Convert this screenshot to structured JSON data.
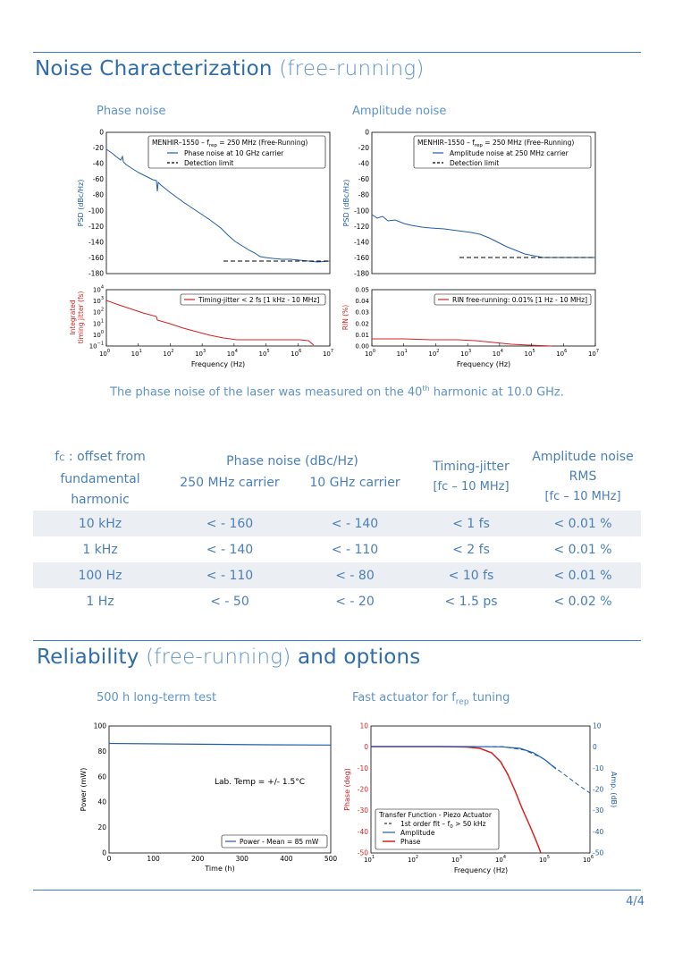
{
  "section1": {
    "title_main": "Noise Characterization",
    "title_light": "(free-running)"
  },
  "fig_phase": {
    "subtitle": "Phase noise",
    "top_legend": {
      "title": "MENHIR–1550 – f",
      "title_sub": "rep",
      "title_rest": " = 250 MHz (Free-Running)",
      "line": "Phase noise at 10 GHz carrier",
      "limit": "Detection limit"
    },
    "top_ylabel": "PSD (dBc/Hz)",
    "top_yticks": [
      "0",
      "-20",
      "-40",
      "-60",
      "-80",
      "-100",
      "-120",
      "-140",
      "-160",
      "-180"
    ],
    "bottom_ylabel_1": "Integrated",
    "bottom_ylabel_2": "timing jitter (fs)",
    "bottom_legend": "Timing-jitter < 2 fs [1 kHz - 10 MHz]",
    "bottom_yticks": [
      "10",
      "10",
      "10",
      "10",
      "10",
      "10"
    ],
    "bottom_yexp": [
      "4",
      "3",
      "2",
      "1",
      "0",
      "−1"
    ],
    "xlabel": "Frequency (Hz)",
    "xticks": [
      "10",
      "10",
      "10",
      "10",
      "10",
      "10",
      "10",
      "10"
    ],
    "xexp": [
      "0",
      "1",
      "2",
      "3",
      "4",
      "5",
      "6",
      "7"
    ]
  },
  "fig_amp": {
    "subtitle": "Amplitude noise",
    "top_legend": {
      "title": "MENHIR–1550 – f",
      "title_sub": "rep",
      "title_rest": " = 250 MHz (Free–Running)",
      "line": "Amplitude noise at 250 MHz carrier",
      "limit": "Detection limit"
    },
    "top_ylabel": "PSD (dBc/Hz)",
    "top_yticks": [
      "0",
      "-20",
      "-40",
      "-60",
      "-80",
      "-100",
      "-120",
      "-140",
      "-160",
      "-180"
    ],
    "bottom_ylabel": "RIN (%)",
    "bottom_legend": "RIN free-running: 0.01% [1 Hz - 10 MHz]",
    "bottom_yticks": [
      "0.05",
      "0.04",
      "0.03",
      "0.02",
      "0.01",
      "0.00"
    ],
    "xlabel": "Frequency (Hz)",
    "xticks": [
      "10",
      "10",
      "10",
      "10",
      "10",
      "10",
      "10",
      "10"
    ],
    "xexp": [
      "0",
      "1",
      "2",
      "3",
      "4",
      "5",
      "6",
      "7"
    ]
  },
  "caption": {
    "pre": "The phase noise of the laser was measured on the 40",
    "sup": "th",
    "post": " harmonic at 10.0 GHz."
  },
  "table": {
    "h_offset": [
      "f",
      "C",
      " : offset from",
      "fundamental",
      "harmonic"
    ],
    "h_phase": "Phase noise (dBc/Hz)",
    "h_250": "250 MHz carrier",
    "h_10g": "10 GHz carrier",
    "h_jitter_1": "Timing-jitter",
    "h_jitter_2": "[fc – 10 MHz]",
    "h_amp_1": "Amplitude noise",
    "h_amp_2": "RMS",
    "h_amp_3": "[fc – 10 MHz]",
    "rows": [
      [
        "10 kHz",
        "< - 160",
        "< - 140",
        "< 1 fs",
        "< 0.01 %"
      ],
      [
        "1 kHz",
        "< - 140",
        "< - 110",
        "< 2 fs",
        "< 0.01 %"
      ],
      [
        "100 Hz",
        "< - 110",
        "< - 80",
        "< 10 fs",
        "< 0.01 %"
      ],
      [
        "1 Hz",
        "< - 50",
        "< - 20",
        "< 1.5 ps",
        "< 0.02 %"
      ]
    ]
  },
  "section2": {
    "title_main_1": "Reliability",
    "title_light": "(free-running)",
    "title_main_2": "and options"
  },
  "fig_longterm": {
    "subtitle": "500 h long-term test",
    "ylabel": "Power (mW)",
    "xlabel": "Time (h)",
    "yticks": [
      "100",
      "80",
      "60",
      "40",
      "20",
      "0"
    ],
    "xticks": [
      "0",
      "100",
      "200",
      "300",
      "400",
      "500"
    ],
    "annotation": "Lab. Temp = +/- 1.5°C",
    "legend": "Power - Mean =  85 mW"
  },
  "fig_actuator": {
    "subtitle_pre": "Fast actuator for f",
    "subtitle_sub": "rep",
    "subtitle_post": " tuning",
    "ylabel_left": "Phase (deg)",
    "ylabel_right": "Amp. (dB)",
    "xlabel": "Frequency (Hz)",
    "yticks_left": [
      "10",
      "0",
      "-10",
      "-20",
      "-30",
      "-40",
      "-50"
    ],
    "yticks_right": [
      "10",
      "0",
      "-10",
      "-20",
      "-30",
      "-40",
      "-50"
    ],
    "xticks": [
      "10",
      "10",
      "10",
      "10",
      "10",
      "10"
    ],
    "xexp": [
      "1",
      "2",
      "3",
      "4",
      "5",
      "6"
    ],
    "legend_title": "Transfer Function - Piezo Actuator",
    "legend_fit": "1st order fit – f",
    "legend_fit_sub": "0",
    "legend_fit_post": " > 50 kHz",
    "legend_amp": "Amplitude",
    "legend_phase": "Phase"
  },
  "colors": {
    "accent": "#3d7cc4",
    "phase_red": "#d62020",
    "amp_blue": "#1f5ea8"
  },
  "page": "4/4"
}
